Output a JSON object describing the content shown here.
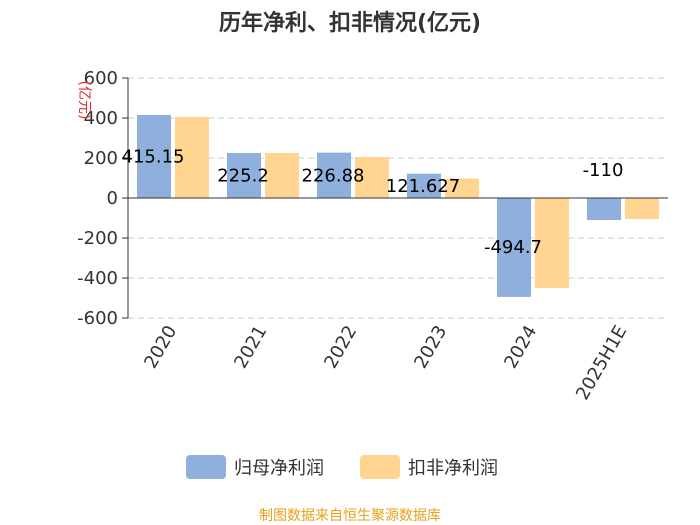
{
  "chart_data": {
    "type": "bar",
    "title": "历年净利、扣非情况(亿元)",
    "ylabel": "(亿元)",
    "categories": [
      "2020",
      "2021",
      "2022",
      "2023",
      "2024",
      "2025H1E"
    ],
    "series": [
      {
        "name": "归母净利润",
        "values": [
          415.15,
          225.2,
          226.88,
          121.62,
          -494.7,
          -110
        ],
        "color": "#8fb0dc"
      },
      {
        "name": "扣非净利润",
        "values": [
          405,
          225,
          205,
          97,
          -450,
          -105
        ],
        "color": "#ffd591"
      }
    ],
    "data_labels": [
      "415.15",
      "225.2",
      "226.88",
      "121.627",
      "-494.7",
      "-110"
    ],
    "ylim": [
      -600,
      600
    ],
    "yticks": [
      600,
      400,
      200,
      0,
      -200,
      -400,
      -600
    ],
    "grid": true,
    "legend_position": "bottom",
    "source": "制图数据来自恒生聚源数据库"
  }
}
